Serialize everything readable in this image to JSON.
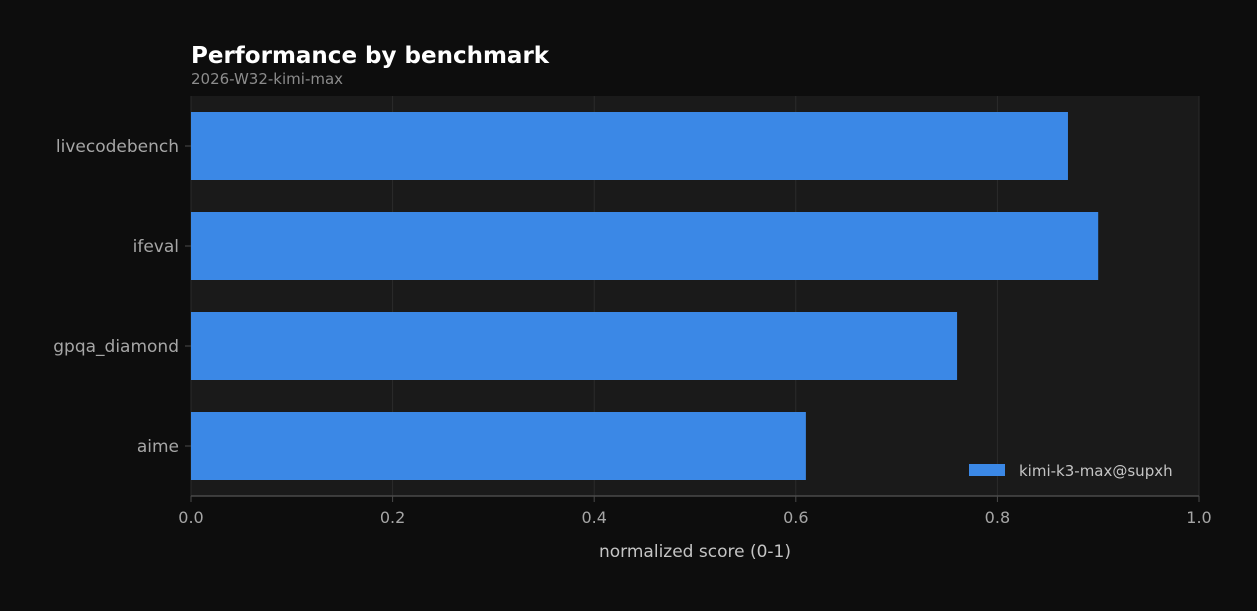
{
  "chart_data": {
    "type": "bar",
    "orientation": "horizontal",
    "title": "Performance by benchmark",
    "subtitle": "2026-W32-kimi-max",
    "xlabel": "normalized score (0-1)",
    "ylabel": "",
    "xlim": [
      0,
      1
    ],
    "xticks": [
      "0.0",
      "0.2",
      "0.4",
      "0.6",
      "0.8",
      "1.0"
    ],
    "categories": [
      "livecodebench",
      "ifeval",
      "gpqa_diamond",
      "aime"
    ],
    "series": [
      {
        "name": "kimi-k3-max@supxh",
        "values": [
          0.87,
          0.9,
          0.76,
          0.61
        ],
        "color": "#3b88e6"
      }
    ],
    "grid": true,
    "legend": "bottom-right"
  },
  "colors": {
    "page_background": "#0d0d0d",
    "plot_background": "#1a1a1a",
    "grid": "#2b2b2b",
    "axis": "#4a4a4a",
    "title": "#ffffff",
    "subtitle": "#8c8c8c",
    "tick_label": "#a6a6a6",
    "axis_label": "#c4c4c4",
    "legend_text": "#c4c4c4"
  }
}
